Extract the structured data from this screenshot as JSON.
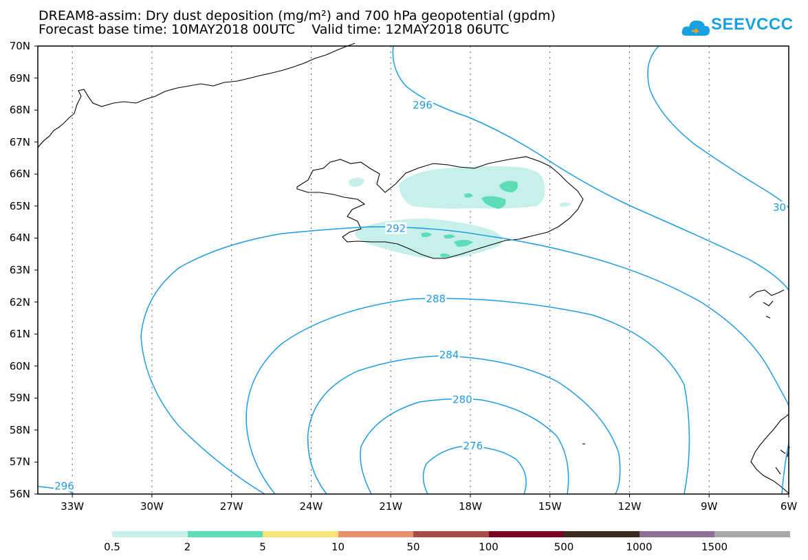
{
  "title": {
    "line1": "DREAM8-assim: Dry dust deposition (mg/m²) and 700 hPa geopotential (gpdm)",
    "line2": "Forecast base time: 10MAY2018 00UTC    Valid time: 12MAY2018 06UTC"
  },
  "logo": {
    "text": "SEEVCCC",
    "icon": "cloud-icon",
    "color": "#1a9fe0"
  },
  "map": {
    "lat_labels": [
      "70N",
      "69N",
      "68N",
      "67N",
      "66N",
      "65N",
      "64N",
      "63N",
      "62N",
      "61N",
      "60N",
      "59N",
      "58N",
      "57N",
      "56N"
    ],
    "lon_labels": [
      "33W",
      "30W",
      "27W",
      "24W",
      "21W",
      "18W",
      "15W",
      "12W",
      "9W",
      "6W"
    ],
    "lat_range": [
      56,
      70
    ],
    "lon_range": [
      -34.3,
      -6
    ],
    "contour_color": "#1e9be6",
    "contour_labels": [
      {
        "text": "296",
        "lon": -19.8,
        "lat": 68.15
      },
      {
        "text": "30",
        "lon": -6.35,
        "lat": 64.95
      },
      {
        "text": "292",
        "lon": -20.8,
        "lat": 64.3
      },
      {
        "text": "288",
        "lon": -19.3,
        "lat": 62.1
      },
      {
        "text": "284",
        "lon": -18.8,
        "lat": 60.35
      },
      {
        "text": "280",
        "lon": -18.3,
        "lat": 58.95
      },
      {
        "text": "276",
        "lon": -17.9,
        "lat": 57.5
      },
      {
        "text": "296",
        "lon": -33.3,
        "lat": 56.25
      }
    ]
  },
  "legend": {
    "colors": [
      "#c8f0ea",
      "#5ddcb8",
      "#f5e47a",
      "#e9906e",
      "#a84c47",
      "#7a0022",
      "#3a2b1c",
      "#8e6e98",
      "#a9a9a9"
    ],
    "labels": [
      "0.5",
      "2",
      "5",
      "10",
      "50",
      "100",
      "500",
      "1000",
      "1500"
    ]
  }
}
